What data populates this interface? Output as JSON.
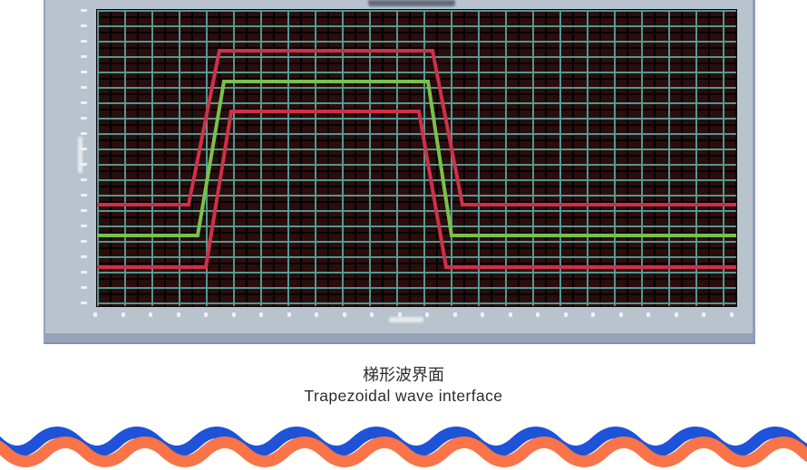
{
  "figure": {
    "caption_line1": "梯形波界面",
    "caption_line2": "Trapezoidal wave interface"
  },
  "panel": {
    "bg": "#b9c3cd",
    "frame": "#95a2ba",
    "tick_color": "#eef1f4"
  },
  "chart_data": {
    "type": "line",
    "title": "",
    "xlabel": "",
    "ylabel": "",
    "legibility_note": "axis tick labels and axis titles are rendered but too small to read in the screenshot",
    "plot_bg": "#2a0d0d",
    "grid": {
      "on": true,
      "major_color": "#52a098",
      "minor_color": "#000000",
      "major_x_spacing_px": 30,
      "major_y_spacing_px": 17
    },
    "x_tick_count": 24,
    "y_tick_count": 20,
    "units": "pixels relative to 705x327 plot area, y increases downward",
    "series": [
      {
        "name": "upper red trapezoid",
        "color": "#cf3049",
        "width": 4,
        "points": [
          [
            0,
            215
          ],
          [
            101,
            215
          ],
          [
            135,
            45
          ],
          [
            370,
            45
          ],
          [
            403,
            215
          ],
          [
            705,
            215
          ]
        ]
      },
      {
        "name": "green trapezoid",
        "color": "#79c14a",
        "width": 4,
        "points": [
          [
            0,
            249
          ],
          [
            111,
            249
          ],
          [
            140,
            79
          ],
          [
            365,
            79
          ],
          [
            391,
            249
          ],
          [
            705,
            249
          ]
        ]
      },
      {
        "name": "lower red trapezoid",
        "color": "#cf3049",
        "width": 4,
        "points": [
          [
            0,
            284
          ],
          [
            120,
            284
          ],
          [
            148,
            112
          ],
          [
            355,
            112
          ],
          [
            385,
            284
          ],
          [
            705,
            284
          ]
        ]
      }
    ]
  },
  "decor": {
    "wave_blue": "#1e52d8",
    "wave_orange": "#f97448",
    "period": 88,
    "amplitude": 10.5,
    "thickness": 13
  }
}
